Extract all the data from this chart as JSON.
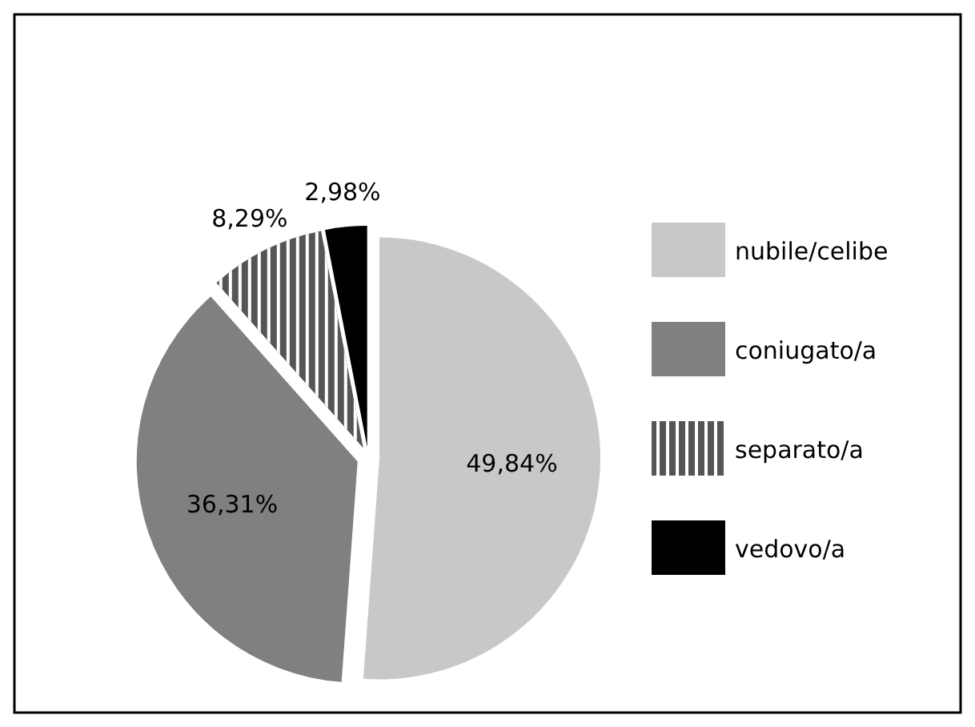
{
  "chart_data": {
    "type": "pie",
    "categories": [
      "nubile/celibe",
      "coniugato/a",
      "separato/a",
      "vedovo/a"
    ],
    "values": [
      49.84,
      36.31,
      8.29,
      2.98
    ],
    "colors": [
      "#c8c8c8",
      "#808080",
      "#555555",
      "#000000"
    ],
    "value_labels": [
      "49,84%",
      "36,31%",
      "8,29%",
      "2,98%"
    ],
    "legend": "right"
  }
}
